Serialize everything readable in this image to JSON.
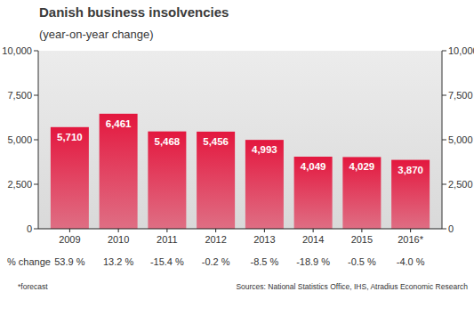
{
  "chart_data": {
    "type": "bar",
    "title": "Danish business insolvencies",
    "subtitle": "(year-on-year change)",
    "categories": [
      "2009",
      "2010",
      "2011",
      "2012",
      "2013",
      "2014",
      "2015",
      "2016*"
    ],
    "values": [
      5710,
      6461,
      5468,
      5456,
      4993,
      4049,
      4029,
      3870
    ],
    "value_labels": [
      "5,710",
      "6,461",
      "5,468",
      "5,456",
      "4,993",
      "4,049",
      "4,029",
      "3,870"
    ],
    "color": "#e3173e",
    "data_labels": true,
    "grid": false,
    "ylim": [
      0,
      10000
    ],
    "yticks": [
      0,
      {
        "value": 2500,
        "label": "2,500"
      },
      {
        "value": 5000,
        "label": "5,000"
      },
      {
        "value": 7500,
        "label": "7,500"
      },
      {
        "value": 10000,
        "label": "10,000"
      }
    ],
    "y2lim": [
      0,
      10000
    ],
    "y2ticks": [
      0,
      {
        "value": 2500,
        "label": "2,500"
      },
      {
        "value": 5000,
        "label": "5,000"
      },
      {
        "value": 7500,
        "label": "7,500"
      },
      {
        "value": 10000,
        "label": "10,000"
      }
    ],
    "pct_change": {
      "label": "% change",
      "values": [
        53.9,
        13.2,
        -15.4,
        -0.2,
        -8.5,
        -18.9,
        -0.5,
        -4.0
      ],
      "value_labels": [
        "53.9 %",
        "13.2 %",
        "-15.4 %",
        "-0.2 %",
        "-8.5 %",
        "-18.9 %",
        "-0.5 %",
        "-4.0 %"
      ]
    },
    "footnote": "*forecast",
    "source": "Sources: National Statistics Office, IHS, Atradius Economic Research"
  }
}
